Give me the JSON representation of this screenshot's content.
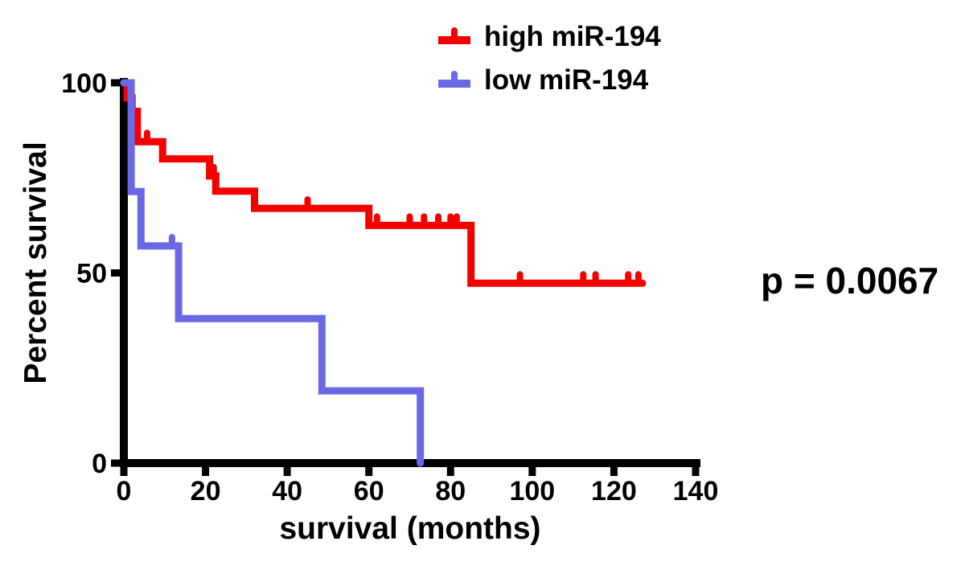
{
  "chart_data": {
    "type": "line",
    "subtype": "kaplan-meier-step",
    "title": "",
    "xlabel": "survival (months)",
    "ylabel": "Percent survival",
    "xlim": [
      0,
      140
    ],
    "ylim": [
      0,
      100
    ],
    "xticks": [
      0,
      20,
      40,
      60,
      80,
      100,
      120,
      140
    ],
    "yticks": [
      100,
      50,
      0
    ],
    "grid": false,
    "axis_color": "#000000",
    "legend_position": "top-center",
    "p_value_label": "p = 0.0067",
    "series": [
      {
        "name": "high miR-194",
        "color": "#f40000",
        "steps": [
          [
            0,
            100
          ],
          [
            0.8,
            96
          ],
          [
            2,
            92.5
          ],
          [
            3.3,
            84.5
          ],
          [
            9.5,
            80
          ],
          [
            21,
            75.5
          ],
          [
            22.5,
            71.5
          ],
          [
            32,
            67
          ],
          [
            60,
            62.5
          ],
          [
            85,
            47.3
          ]
        ],
        "end_x": 127,
        "censor_marks": [
          [
            5.7,
            84.5
          ],
          [
            22,
            75.5
          ],
          [
            45,
            67
          ],
          [
            62,
            62.5
          ],
          [
            70,
            62.5
          ],
          [
            73.5,
            62.5
          ],
          [
            77,
            62.5
          ],
          [
            80,
            62.5
          ],
          [
            81.5,
            62.5
          ],
          [
            97,
            47.3
          ],
          [
            112.5,
            47.3
          ],
          [
            115.5,
            47.3
          ],
          [
            123.5,
            47.3
          ],
          [
            126,
            47.3
          ]
        ]
      },
      {
        "name": "low miR-194",
        "color": "#6969e6",
        "steps": [
          [
            0,
            100
          ],
          [
            1.8,
            71.4
          ],
          [
            4.2,
            57.1
          ],
          [
            13.4,
            38
          ],
          [
            48.5,
            19
          ],
          [
            72.6,
            0
          ]
        ],
        "end_x": 72.6,
        "censor_marks": [
          [
            11.8,
            57.1
          ]
        ]
      }
    ]
  }
}
